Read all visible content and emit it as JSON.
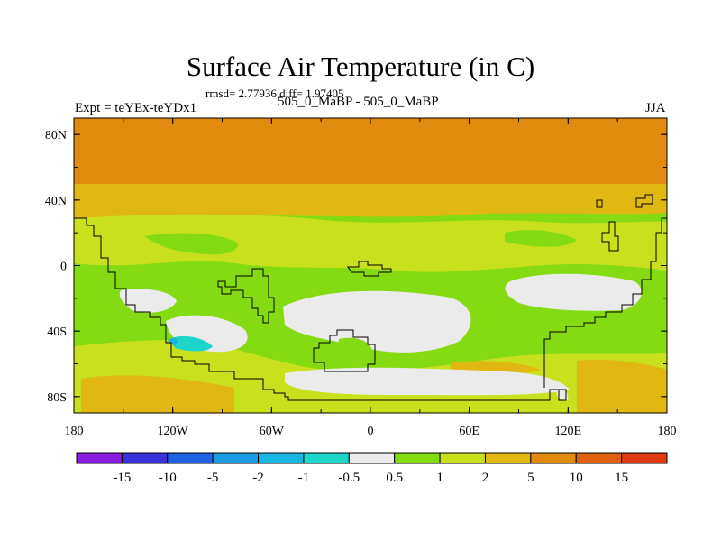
{
  "title": "Surface Air Temperature (in C)",
  "stats": "rmsd= 2.77936 diff= 1.97405",
  "experiment": "Expt = teYEx-teYDx1",
  "subtitle": "505_0_MaBP - 505_0_MaBP",
  "season": "JJA",
  "map": {
    "projection": "cylindrical-equidistant",
    "lon_range": [
      -180,
      180
    ],
    "lat_range": [
      -90,
      90
    ],
    "x_ticks": [
      "180",
      "120W",
      "60W",
      "0",
      "60E",
      "120E",
      "180"
    ],
    "y_ticks": [
      "80N",
      "40N",
      "0",
      "40S",
      "80S"
    ],
    "coastline_color": "#000000"
  },
  "colorbar": {
    "labels": [
      "-15",
      "-10",
      "-5",
      "-2",
      "-1",
      "-0.5",
      "0.5",
      "1",
      "2",
      "5",
      "10",
      "15"
    ],
    "colors": [
      "#8a1de0",
      "#3b31d9",
      "#2162e4",
      "#1c9be0",
      "#1ab6e2",
      "#1dd6c9",
      "#ebebeb",
      "#84db12",
      "#c9e01d",
      "#e1b712",
      "#e08a0e",
      "#e0600e",
      "#de3a10"
    ]
  }
}
